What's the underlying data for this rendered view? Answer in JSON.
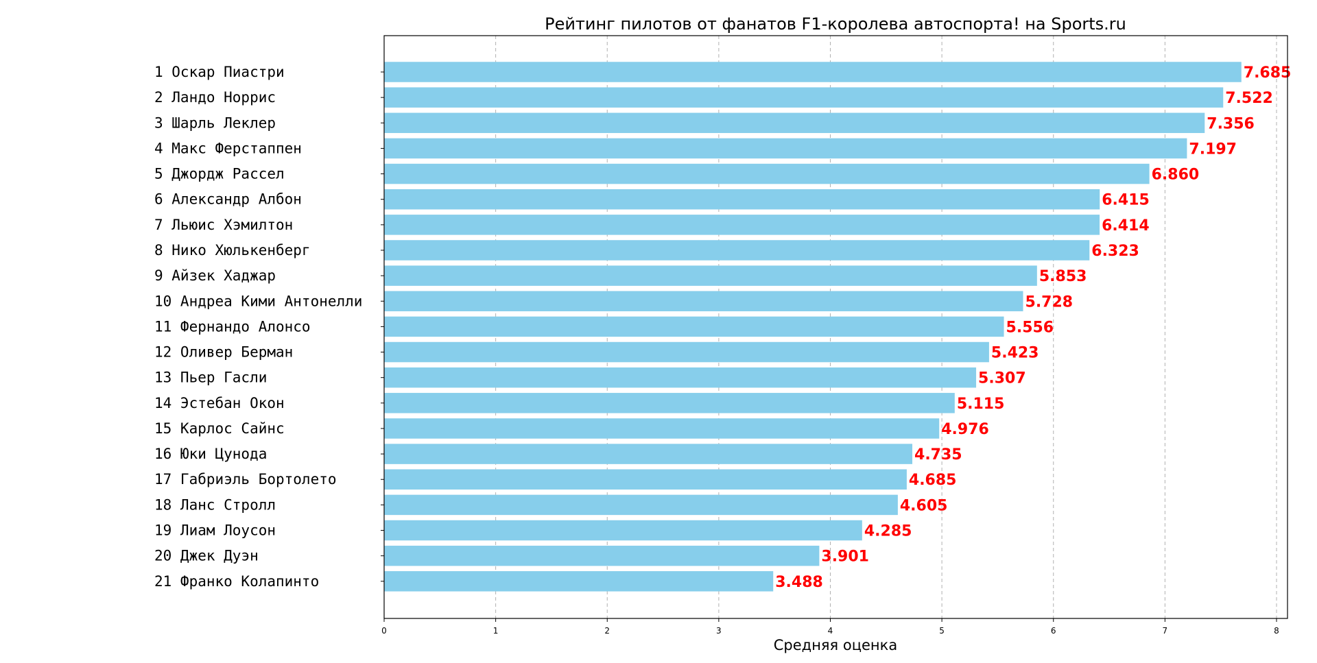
{
  "chart_data": {
    "type": "bar",
    "orientation": "horizontal",
    "title": "Рейтинг пилотов от фанатов F1-королева автоспорта! на Sports.ru",
    "xlabel": "Средняя оценка",
    "ylabel": "",
    "xlim": [
      0,
      8.08
    ],
    "x_ticks": [
      "0",
      "1",
      "2",
      "3",
      "4",
      "5",
      "6",
      "7",
      "8"
    ],
    "grid": "x-dashed",
    "bar_color": "#87ceeb",
    "value_label_color": "#ff0000",
    "categories": [
      "1 Оскар Пиастри",
      "2 Ландо Норрис",
      "3 Шарль Леклер",
      "4 Макс Ферстаппен",
      "5 Джордж Рассел",
      "6 Александр Албон",
      "7 Льюис Хэмилтон",
      "8 Нико Хюлькенберг",
      "9 Айзек Хаджар",
      "10 Андреа Кими Антонелли",
      "11 Фернандо Алонсо",
      "12 Оливер Берман",
      "13 Пьер Гасли",
      "14 Эстебан Окон",
      "15 Карлос Сайнс",
      "16 Юки Цунода",
      "17 Габриэль Бортолето",
      "18 Ланс Стролл",
      "19 Лиам Лоусон",
      "20 Джек Дуэн",
      "21 Франко Колапинто"
    ],
    "values": [
      7.685,
      7.522,
      7.356,
      7.197,
      6.86,
      6.415,
      6.414,
      6.323,
      5.853,
      5.728,
      5.556,
      5.423,
      5.307,
      5.115,
      4.976,
      4.735,
      4.685,
      4.605,
      4.285,
      3.901,
      3.488
    ],
    "value_labels": [
      "7.685",
      "7.522",
      "7.356",
      "7.197",
      "6.860",
      "6.415",
      "6.414",
      "6.323",
      "5.853",
      "5.728",
      "5.556",
      "5.423",
      "5.307",
      "5.115",
      "4.976",
      "4.735",
      "4.685",
      "4.605",
      "4.285",
      "3.901",
      "3.488"
    ]
  }
}
